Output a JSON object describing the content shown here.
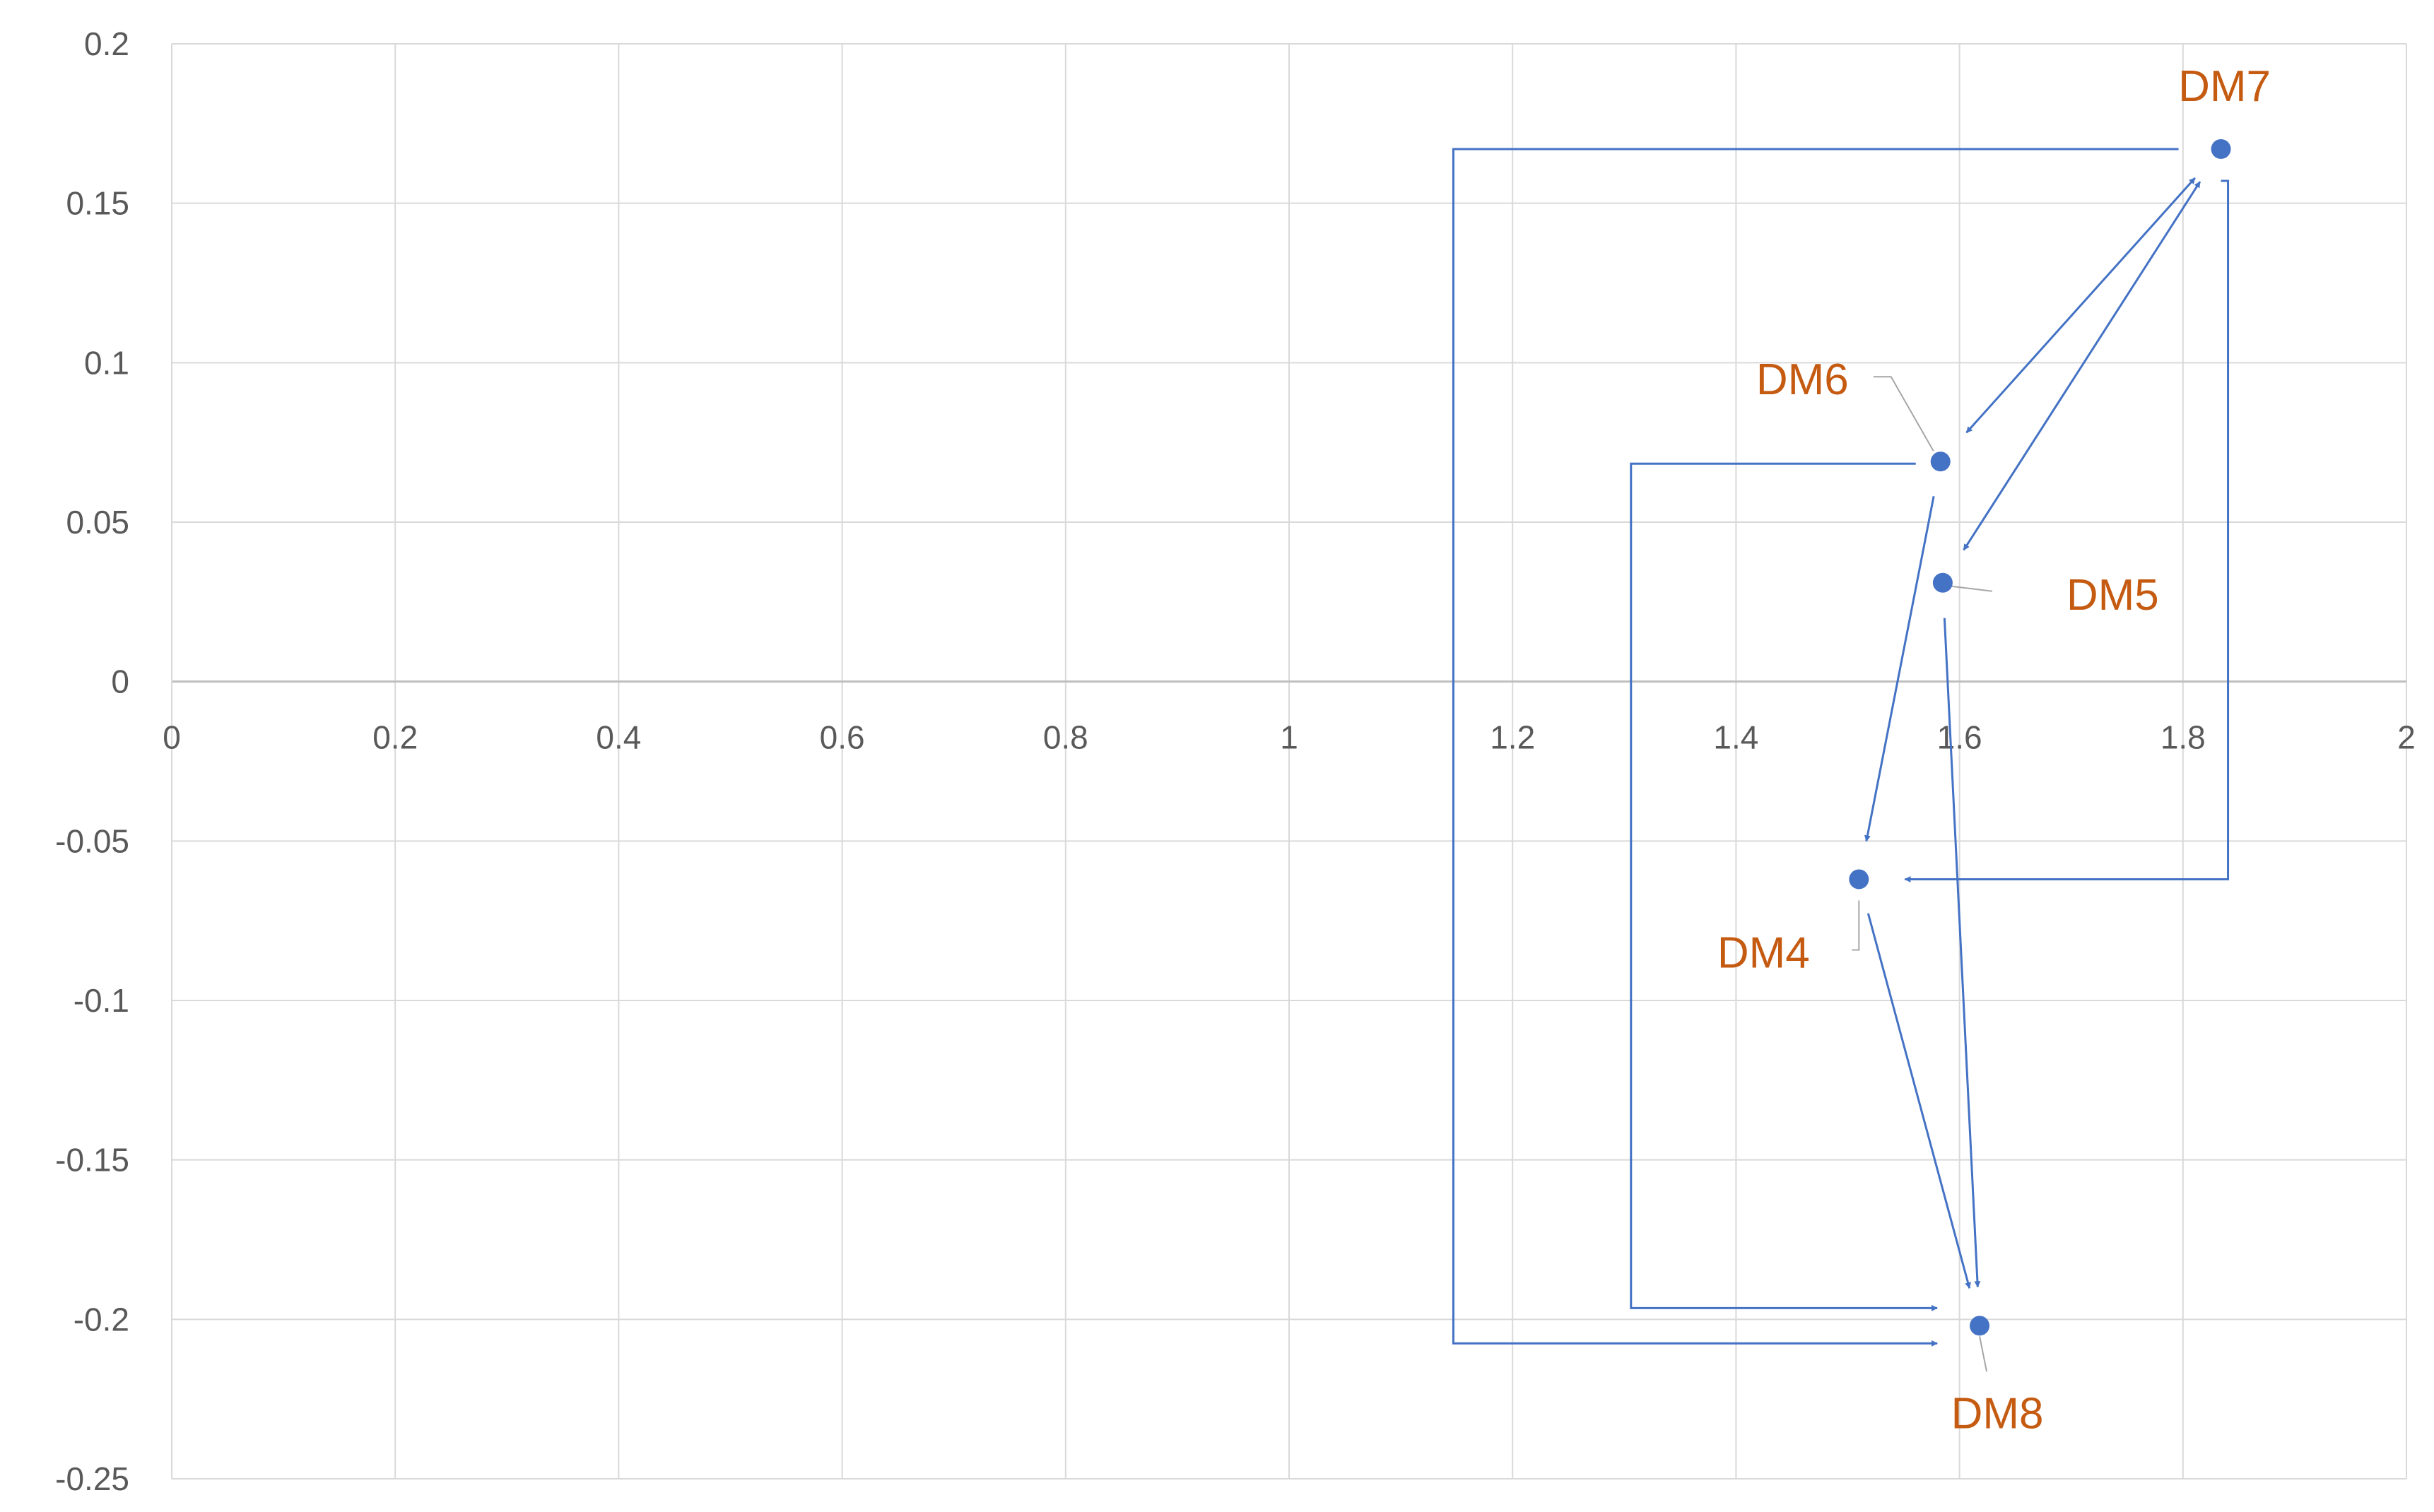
{
  "chart_data": {
    "type": "scatter",
    "title": "",
    "xlabel": "",
    "ylabel": "",
    "xlim": [
      0,
      2
    ],
    "ylim": [
      -0.25,
      0.2
    ],
    "x_ticks": [
      0,
      0.2,
      0.4,
      0.6,
      0.8,
      1,
      1.2,
      1.4,
      1.6,
      1.8,
      2
    ],
    "x_tick_labels": [
      "0",
      "0.2",
      "0.4",
      "0.6",
      "0.8",
      "1",
      "1.2",
      "1.4",
      "1.6",
      "1.8",
      "2"
    ],
    "y_ticks": [
      0.2,
      0.15,
      0.1,
      0.05,
      0,
      -0.05,
      -0.1,
      -0.15,
      -0.2,
      -0.25
    ],
    "y_tick_labels": [
      "0.2",
      "0.15",
      "0.1",
      "0.05",
      "0",
      "-0.05",
      "-0.1",
      "-0.15",
      "-0.2",
      "-0.25"
    ],
    "grid": true,
    "legend": "none",
    "point_color": "#4472c4",
    "label_color": "#c55a11",
    "arrow_color": "#4472c4",
    "leader_color": "#a6a6a6",
    "points": [
      {
        "label": "DM4",
        "x": 1.51,
        "y": -0.062
      },
      {
        "label": "DM5",
        "x": 1.585,
        "y": 0.031
      },
      {
        "label": "DM6",
        "x": 1.583,
        "y": 0.069
      },
      {
        "label": "DM7",
        "x": 1.834,
        "y": 0.167
      },
      {
        "label": "DM8",
        "x": 1.618,
        "y": -0.202
      }
    ],
    "arrows": [
      {
        "from": "DM7",
        "to": "DM6",
        "style": "straight",
        "bidirectional": true
      },
      {
        "from": "DM7",
        "to": "DM5",
        "style": "straight",
        "bidirectional": true
      },
      {
        "from": "DM6",
        "to": "DM4",
        "style": "straight"
      },
      {
        "from": "DM4",
        "to": "DM8",
        "style": "straight"
      },
      {
        "from": "DM5",
        "to": "DM8",
        "style": "straight"
      },
      {
        "from": "DM7",
        "to": "DM4",
        "style": "elbow-right"
      },
      {
        "from": "DM6",
        "to": "DM8",
        "style": "elbow-left"
      },
      {
        "from": "DM7",
        "to": "DM8",
        "style": "elbow-left"
      }
    ]
  }
}
